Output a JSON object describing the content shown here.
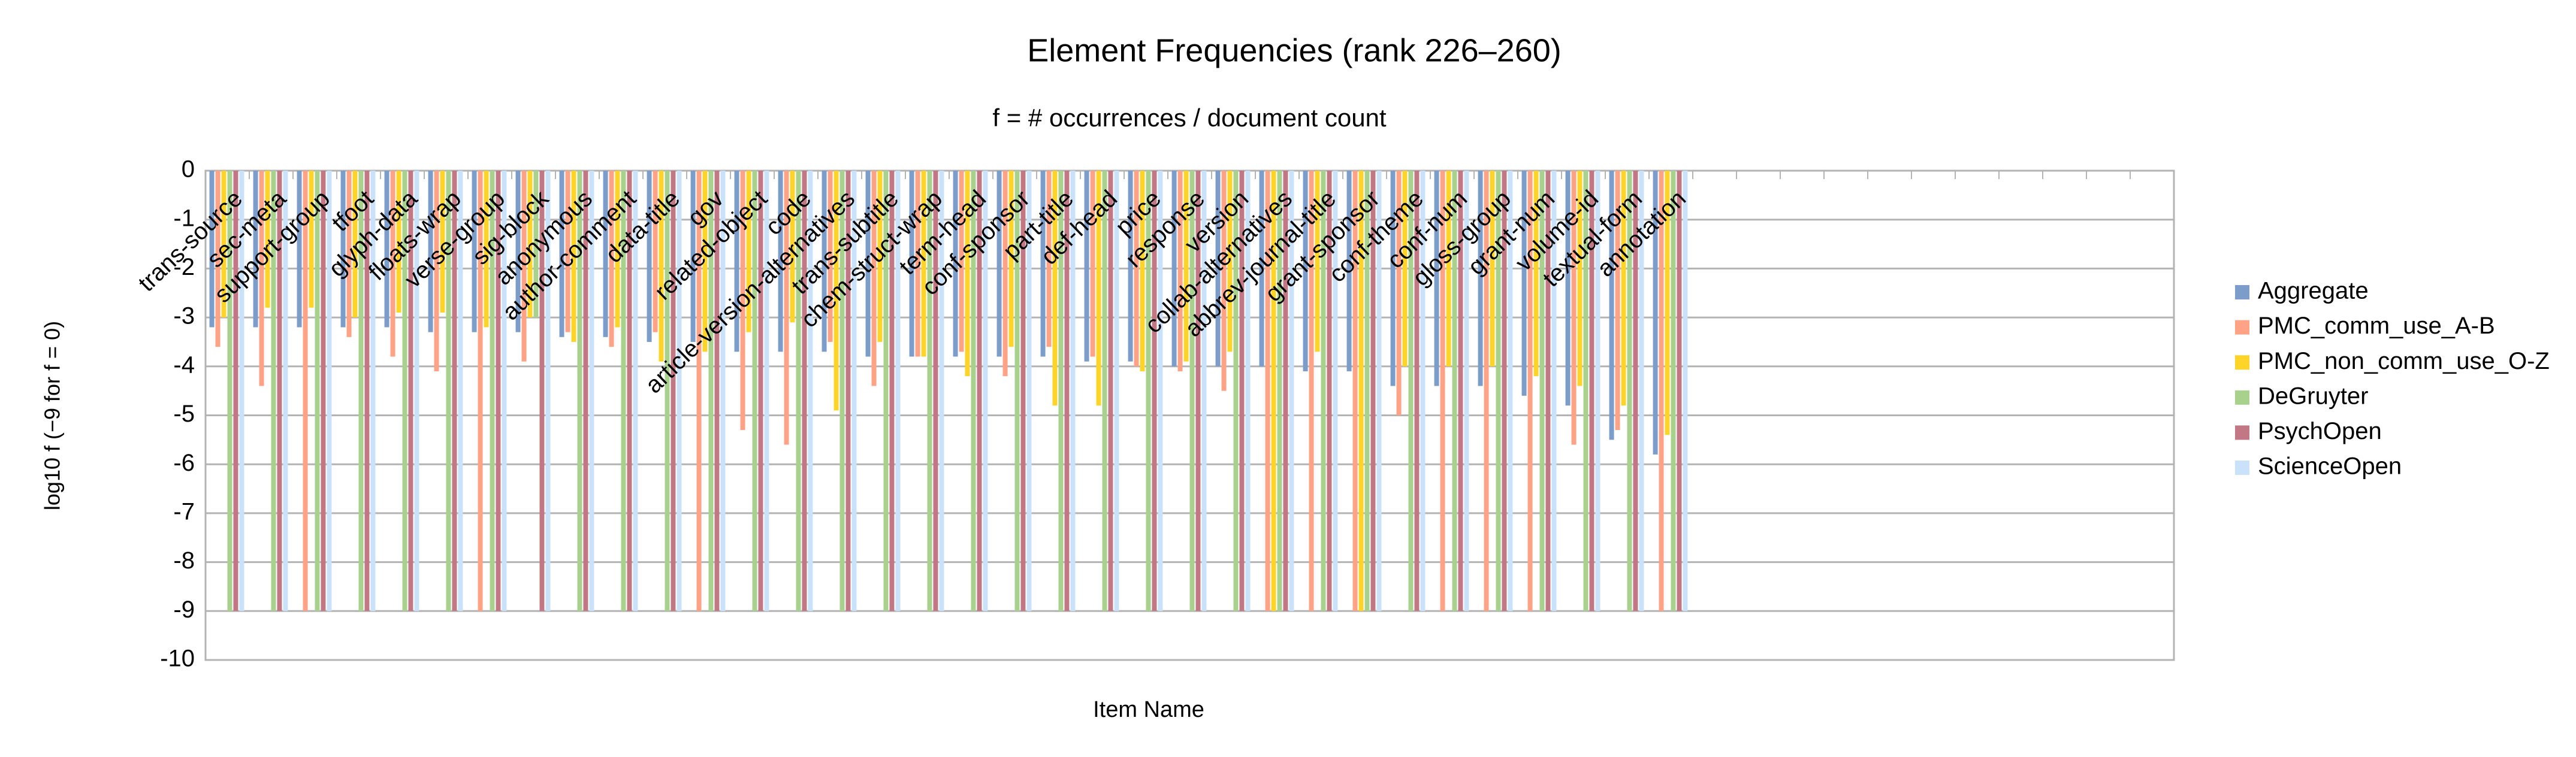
{
  "chart_data": {
    "type": "bar",
    "title": "Element Frequencies (rank 226–260)",
    "subtitle": "f = # occurrences / document count",
    "x_label": "Item Name",
    "y_label": "log10  f  (−9 for f = 0)",
    "categories": [
      "trans-source",
      "sec-meta",
      "support-group",
      "tfoot",
      "glyph-data",
      "floats-wrap",
      "verse-group",
      "sig-block",
      "anonymous",
      "author-comment",
      "data-title",
      "gov",
      "related-object",
      "code",
      "article-version-alternatives",
      "trans-subtitle",
      "chem-struct-wrap",
      "term-head",
      "conf-sponsor",
      "part-title",
      "def-head",
      "price",
      "response",
      "version",
      "collab-alternatives",
      "abbrev-journal-title",
      "grant-sponsor",
      "conf-theme",
      "conf-num",
      "gloss-group",
      "grant-num",
      "volume-id",
      "textual-form",
      "annotation",
      null,
      null,
      null,
      null,
      null,
      null,
      null,
      null,
      null,
      null,
      null
    ],
    "series": [
      {
        "name": "Aggregate",
        "color": "#7c9cc9",
        "values": [
          -3.2,
          -3.2,
          -3.2,
          -3.2,
          -3.2,
          -3.3,
          -3.3,
          -3.3,
          -3.4,
          -3.4,
          -3.5,
          -3.5,
          -3.7,
          -3.7,
          -3.7,
          -3.8,
          -3.8,
          -3.8,
          -3.8,
          -3.8,
          -3.9,
          -3.9,
          -4.0,
          -4.0,
          -4.0,
          -4.1,
          -4.1,
          -4.4,
          -4.4,
          -4.4,
          -4.6,
          -4.8,
          -5.5,
          -5.8,
          null,
          null,
          null,
          null,
          null,
          null,
          null,
          null,
          null,
          null,
          null
        ]
      },
      {
        "name": "PMC_comm_use_A-B",
        "color": "#ffa286",
        "values": [
          -3.6,
          -4.4,
          -9,
          -3.4,
          -3.8,
          -4.1,
          -9,
          -3.9,
          -3.3,
          -3.6,
          -3.3,
          -9,
          -5.3,
          -5.6,
          -3.5,
          -4.4,
          -3.8,
          -3.7,
          -4.2,
          -3.6,
          -3.8,
          -4.0,
          -4.1,
          -4.5,
          -9,
          -9,
          -9,
          -5.0,
          -9,
          -9,
          -9,
          -5.6,
          -5.3,
          -9,
          null,
          null,
          null,
          null,
          null,
          null,
          null,
          null,
          null,
          null,
          null
        ]
      },
      {
        "name": "PMC_non_comm_use_O-Z",
        "color": "#ffd428",
        "values": [
          -3.0,
          -2.8,
          -2.8,
          -3.0,
          -2.9,
          -2.9,
          -3.2,
          -3.0,
          -3.5,
          -3.2,
          -3.9,
          -3.7,
          -3.3,
          -3.1,
          -4.9,
          -3.5,
          -3.8,
          -4.2,
          -3.6,
          -4.8,
          -4.8,
          -4.1,
          -3.9,
          -3.7,
          -9,
          -3.7,
          -9,
          -4.0,
          -4.0,
          -4.0,
          -4.2,
          -4.4,
          -4.8,
          -5.4,
          null,
          null,
          null,
          null,
          null,
          null,
          null,
          null,
          null,
          null,
          null
        ]
      },
      {
        "name": "DeGruyter",
        "color": "#a9d18e",
        "values": [
          -9,
          -9,
          -9,
          -9,
          -9,
          -9,
          -9,
          -3.0,
          -9,
          -9,
          -9,
          -9,
          -9,
          -9,
          -9,
          -9,
          -9,
          -9,
          -9,
          -9,
          -9,
          -9,
          -9,
          -9,
          -9,
          -9,
          -9,
          -9,
          -9,
          -9,
          -9,
          -9,
          -9,
          -9,
          null,
          null,
          null,
          null,
          null,
          null,
          null,
          null,
          null,
          null,
          null
        ]
      },
      {
        "name": "PsychOpen",
        "color": "#c27884",
        "values": [
          -9,
          -9,
          -9,
          -9,
          -9,
          -9,
          -9,
          -9,
          -9,
          -9,
          -9,
          -9,
          -9,
          -9,
          -9,
          -9,
          -9,
          -9,
          -9,
          -9,
          -9,
          -9,
          -9,
          -9,
          -9,
          -9,
          -9,
          -9,
          -9,
          -9,
          -9,
          -9,
          -9,
          -9,
          null,
          null,
          null,
          null,
          null,
          null,
          null,
          null,
          null,
          null,
          null
        ]
      },
      {
        "name": "ScienceOpen",
        "color": "#c9e2fa",
        "values": [
          -9,
          -9,
          -9,
          -9,
          -9,
          -9,
          -9,
          -9,
          -9,
          -9,
          -9,
          -9,
          -9,
          -9,
          -9,
          -9,
          -9,
          -9,
          -9,
          -9,
          -9,
          -9,
          -9,
          -9,
          -9,
          -9,
          -9,
          -9,
          -9,
          -9,
          -9,
          -9,
          -9,
          -9,
          null,
          null,
          null,
          null,
          null,
          null,
          null,
          null,
          null,
          null,
          null
        ]
      }
    ],
    "ylim": [
      -10,
      0
    ],
    "yticks": [
      0,
      -1,
      -2,
      -3,
      -4,
      -5,
      -6,
      -7,
      -8,
      -9,
      -10
    ],
    "grid": true,
    "legend": "right"
  }
}
